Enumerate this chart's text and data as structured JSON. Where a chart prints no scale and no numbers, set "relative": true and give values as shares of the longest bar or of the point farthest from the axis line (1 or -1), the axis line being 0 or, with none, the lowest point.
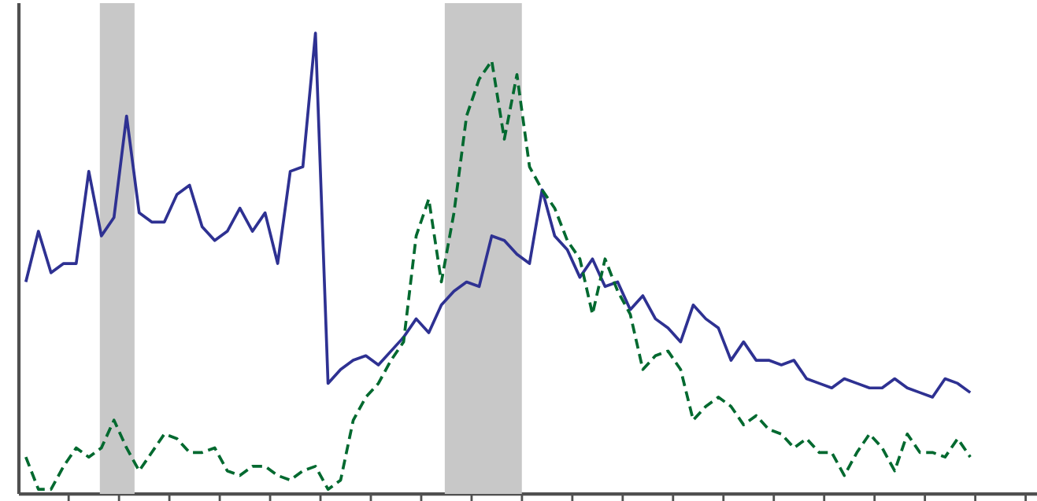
{
  "chart_data": {
    "type": "line",
    "relative": true,
    "categories": [
      null,
      null,
      null,
      null,
      null,
      null,
      null,
      null,
      null,
      null,
      null,
      null,
      null,
      null,
      null,
      null,
      null,
      null,
      null,
      null,
      null,
      null,
      null,
      null,
      null,
      null,
      null,
      null,
      null,
      null,
      null,
      null,
      null,
      null,
      null,
      null,
      null,
      null,
      null,
      null,
      null,
      null,
      null,
      null,
      null,
      null,
      null,
      null,
      null,
      null,
      null,
      null,
      null,
      null,
      null,
      null,
      null,
      null,
      null,
      null,
      null,
      null,
      null,
      null,
      null,
      null,
      null,
      null,
      null,
      null,
      null,
      null,
      null,
      null,
      null,
      null
    ],
    "series": [
      {
        "color": "#2e3192",
        "line_style": "solid",
        "values": [
          0.46,
          0.57,
          0.48,
          0.5,
          0.5,
          0.7,
          0.56,
          0.6,
          0.82,
          0.61,
          0.59,
          0.59,
          0.65,
          0.67,
          0.58,
          0.55,
          0.57,
          0.62,
          0.57,
          0.61,
          0.5,
          0.7,
          0.71,
          1,
          0.24,
          0.27,
          0.29,
          0.3,
          0.28,
          0.31,
          0.34,
          0.38,
          0.35,
          0.41,
          0.44,
          0.46,
          0.45,
          0.56,
          0.55,
          0.52,
          0.5,
          0.66,
          0.56,
          0.53,
          0.47,
          0.51,
          0.45,
          0.46,
          0.4,
          0.43,
          0.38,
          0.36,
          0.33,
          0.41,
          0.38,
          0.36,
          0.29,
          0.33,
          0.29,
          0.29,
          0.28,
          0.29,
          0.25,
          0.24,
          0.23,
          0.25,
          0.24,
          0.23,
          0.23,
          0.25,
          0.23,
          0.22,
          0.21,
          0.25,
          0.24,
          0.22
        ]
      },
      {
        "color": "#00692f",
        "line_style": "dashed",
        "values": [
          0.08,
          0.01,
          0.01,
          0.06,
          0.1,
          0.08,
          0.1,
          0.16,
          0.1,
          0.05,
          0.09,
          0.13,
          0.12,
          0.09,
          0.09,
          0.1,
          0.05,
          0.04,
          0.06,
          0.06,
          0.04,
          0.03,
          0.05,
          0.06,
          0.01,
          0.03,
          0.16,
          0.21,
          0.24,
          0.29,
          0.33,
          0.56,
          0.64,
          0.46,
          0.61,
          0.82,
          0.9,
          0.94,
          0.77,
          0.91,
          0.71,
          0.66,
          0.62,
          0.55,
          0.51,
          0.39,
          0.51,
          0.44,
          0.39,
          0.27,
          0.3,
          0.31,
          0.27,
          0.16,
          0.19,
          0.21,
          0.19,
          0.15,
          0.17,
          0.14,
          0.13,
          0.1,
          0.12,
          0.09,
          0.09,
          0.04,
          0.09,
          0.13,
          0.1,
          0.05,
          0.13,
          0.09,
          0.09,
          0.08,
          0.12,
          0.08
        ]
      }
    ]
  }
}
